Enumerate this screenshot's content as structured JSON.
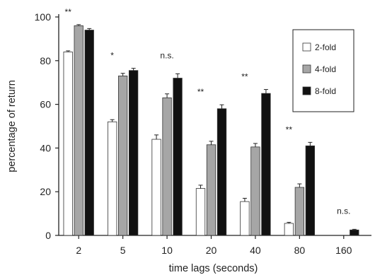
{
  "chart_data": {
    "type": "bar",
    "title": "",
    "xlabel": "time lags (seconds)",
    "ylabel": "percentage of return",
    "ylim": [
      0,
      100
    ],
    "yticks": [
      0,
      20,
      40,
      60,
      80,
      100
    ],
    "categories": [
      "2",
      "5",
      "10",
      "20",
      "40",
      "80",
      "160"
    ],
    "series": [
      {
        "name": "2-fold",
        "color": "#ffffff",
        "values": [
          84,
          52,
          44,
          21.5,
          15.5,
          5.5,
          0
        ],
        "errors": [
          0.5,
          1.0,
          2.0,
          1.5,
          1.5,
          0.5,
          0
        ]
      },
      {
        "name": "4-fold",
        "color": "#a6a6a6",
        "values": [
          96,
          73,
          63,
          41.5,
          40.5,
          22,
          0
        ],
        "errors": [
          0.5,
          1.2,
          1.8,
          1.6,
          1.6,
          1.6,
          0
        ]
      },
      {
        "name": "8-fold",
        "color": "#111111",
        "values": [
          94,
          75.5,
          72,
          58,
          65,
          41,
          2.5
        ],
        "errors": [
          0.7,
          1.0,
          2.0,
          1.8,
          1.8,
          1.6,
          0.3
        ]
      }
    ],
    "annotations": [
      "**",
      "*",
      "n.s.",
      "**",
      "**",
      "**",
      "n.s."
    ],
    "legend_position": "top-right",
    "grid": false
  }
}
